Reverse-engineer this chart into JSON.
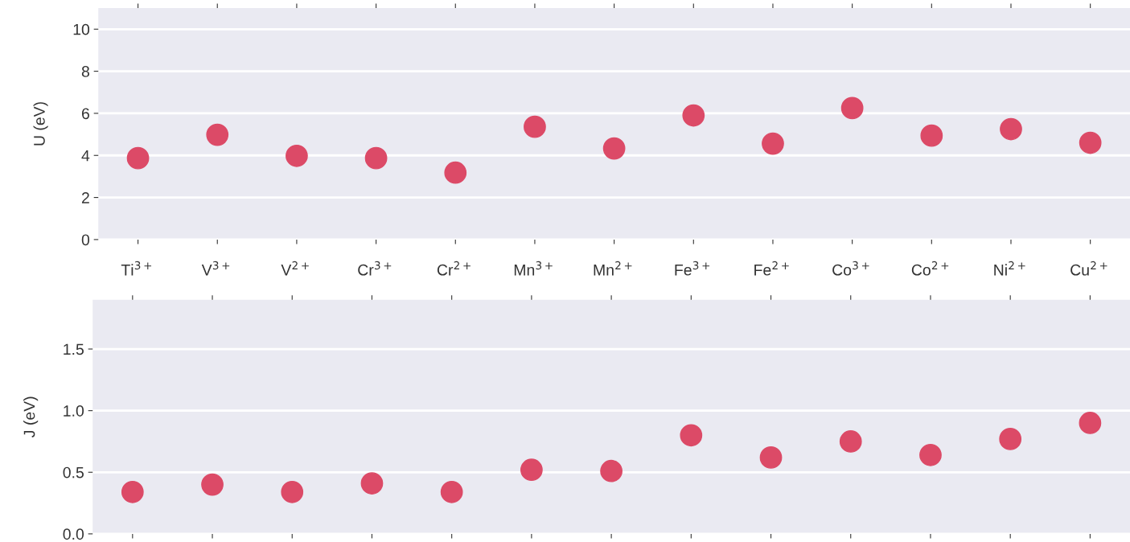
{
  "chart_data": [
    {
      "type": "scatter",
      "ylabel": "U (eV)",
      "categories": [
        "Ti$^{3+}$",
        "V$^{3+}$",
        "V$^{2+}$",
        "Cr$^{3+}$",
        "Cr$^{2+}$",
        "Mn$^{3+}$",
        "Mn$^{2+}$",
        "Fe$^{3+}$",
        "Fe$^{2+}$",
        "Co$^{3+}$",
        "Co$^{2+}$",
        "Ni$^{2+}$",
        "Cu$^{2+}$"
      ],
      "series": [
        {
          "color": "#dc4a67",
          "values": [
            3.87,
            4.98,
            3.98,
            3.87,
            3.18,
            5.36,
            4.33,
            5.9,
            4.56,
            6.25,
            4.94,
            5.25,
            4.6
          ]
        }
      ],
      "ylim": [
        0,
        11
      ],
      "yticks": [
        0,
        2,
        4,
        6,
        8,
        10
      ],
      "grid": "y",
      "marker": "circle"
    },
    {
      "type": "scatter",
      "ylabel": "J (eV)",
      "categories": [
        null,
        null,
        null,
        null,
        null,
        null,
        null,
        null,
        null,
        null,
        null,
        null,
        null
      ],
      "series": [
        {
          "color": "#dc4a67",
          "values": [
            0.34,
            0.4,
            0.34,
            0.41,
            0.34,
            0.52,
            0.51,
            0.8,
            0.62,
            0.75,
            0.64,
            0.77,
            0.9
          ]
        }
      ],
      "ylim": [
        0,
        1.9
      ],
      "yticks": [
        {
          "value": 0,
          "label": "0.0"
        },
        {
          "value": 0.5,
          "label": "0.5"
        },
        {
          "value": 1.0,
          "label": "1.0"
        },
        {
          "value": 1.5,
          "label": "1.5"
        }
      ],
      "grid": "y",
      "marker": "circle",
      "tick_labels": "y"
    }
  ]
}
